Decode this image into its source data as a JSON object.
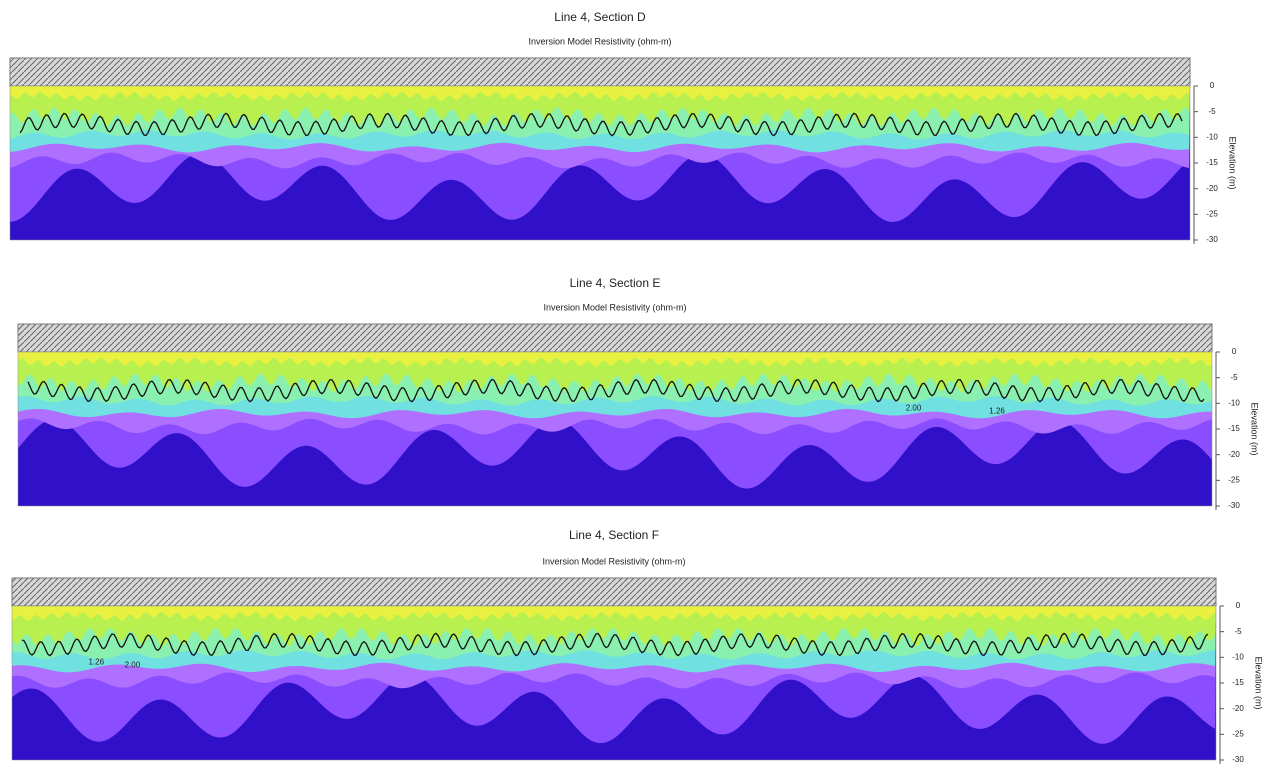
{
  "chart_data": [
    {
      "type": "section",
      "title": "Line 4, Section D",
      "subtitle": "Inversion Model Resistivity (ohm-m)",
      "ylabel": "Elevation (m)",
      "ylim": [
        -30,
        0
      ],
      "yticks": [
        0,
        -5,
        -10,
        -15,
        -20,
        -25,
        -30
      ],
      "contour_labels": []
    },
    {
      "type": "section",
      "title": "Line 4, Section E",
      "subtitle": "Inversion Model Resistivity (ohm-m)",
      "ylabel": "Elevation (m)",
      "ylim": [
        -30,
        0
      ],
      "yticks": [
        0,
        -5,
        -10,
        -15,
        -20,
        -25,
        -30
      ],
      "contour_labels": [
        "2.00",
        "1.26"
      ]
    },
    {
      "type": "section",
      "title": "Line 4, Section F",
      "subtitle": "Inversion Model Resistivity (ohm-m)",
      "ylabel": "Elevation (m)",
      "ylim": [
        -30,
        0
      ],
      "yticks": [
        0,
        -5,
        -10,
        -15,
        -20,
        -25,
        -30
      ],
      "contour_labels": [
        "1.26",
        "2.00"
      ]
    }
  ]
}
